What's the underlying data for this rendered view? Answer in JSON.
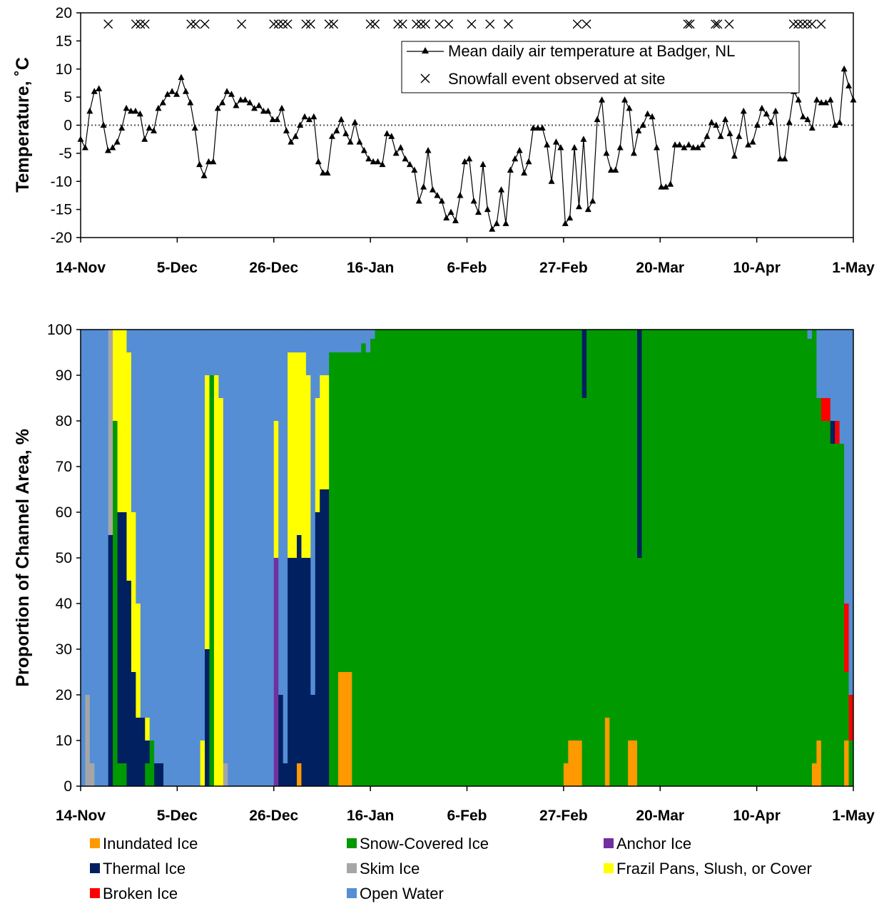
{
  "chart_data": [
    {
      "type": "line",
      "ylabel": "Temperature, ˚C",
      "xlabel": "",
      "ylim": [
        -20,
        20
      ],
      "yticks": [
        -20,
        -15,
        -10,
        -5,
        0,
        5,
        10,
        15,
        20
      ],
      "xticks": [
        "14-Nov",
        "5-Dec",
        "26-Dec",
        "16-Jan",
        "6-Feb",
        "27-Feb",
        "20-Mar",
        "10-Apr",
        "1-May"
      ],
      "grid": false,
      "reference_line": {
        "y": 0,
        "style": "dotted"
      },
      "legend_position": "top-right",
      "series": [
        {
          "name": "Mean daily air temperature at Badger, NL",
          "marker": "triangle",
          "values": [
            -2.5,
            -4,
            2.5,
            6,
            6.5,
            0,
            -4.5,
            -4,
            -3,
            -0.5,
            3,
            2.5,
            2.5,
            2,
            -2.5,
            -0.5,
            -1,
            3,
            4,
            5.5,
            6,
            5.5,
            8.5,
            6,
            4,
            -0.5,
            -7,
            -9,
            -6.5,
            -6.5,
            3,
            4,
            6,
            5.5,
            3.5,
            4.5,
            4.5,
            4,
            3,
            3.5,
            2.5,
            2.5,
            1,
            1,
            3,
            -1,
            -3,
            -2,
            0,
            1.5,
            1,
            1.5,
            -6.5,
            -8.5,
            -8.5,
            -2,
            -1,
            1,
            -1.5,
            -3,
            0.5,
            -3,
            -4.5,
            -6,
            -6.5,
            -6.5,
            -7,
            -1.5,
            -2,
            -5,
            -4,
            -6,
            -7,
            -8,
            -13.5,
            -11,
            -4.5,
            -11.5,
            -12.5,
            -13.5,
            -16.5,
            -15.5,
            -17,
            -12.5,
            -6.5,
            -6,
            -13.5,
            -15.5,
            -7,
            -15,
            -18.5,
            -17.5,
            -11.5,
            -17.5,
            -8,
            -6,
            -4.5,
            -8.5,
            -6.5,
            -0.5,
            -0.5,
            -0.5,
            -3.5,
            -10,
            -3,
            -4,
            -17.5,
            -16.5,
            -4,
            -14.5,
            -2.5,
            -15,
            -13.5,
            1,
            4.5,
            -5,
            -8,
            -8,
            -4,
            4.5,
            3,
            -5,
            -1,
            0,
            2,
            1.5,
            -4,
            -11,
            -11,
            -10.5,
            -3.5,
            -3.5,
            -4,
            -3.5,
            -4,
            -4,
            -3.5,
            -2,
            0.5,
            0,
            -2,
            1,
            -1.5,
            -5.5,
            -2,
            2.5,
            -3.5,
            -3,
            0,
            3,
            2,
            0.5,
            2.5,
            -6,
            -6,
            0.5,
            6,
            4.5,
            1.5,
            1,
            -0.5,
            4.5,
            4,
            4,
            4.5,
            0,
            0.5,
            10,
            7,
            4.5
          ]
        },
        {
          "name": "Snowfall event observed at site",
          "marker": "x",
          "y_level": 18,
          "x_day_offsets": [
            6,
            12,
            13,
            14,
            24,
            25,
            27,
            35,
            42,
            43,
            44,
            45,
            49,
            50,
            54,
            55,
            63,
            64,
            69,
            70,
            73,
            74,
            75,
            78,
            80,
            85,
            89,
            93,
            108,
            110,
            132,
            132.5,
            138,
            138.5,
            141,
            155,
            156,
            157,
            158,
            159,
            161
          ]
        }
      ]
    },
    {
      "type": "bar",
      "stacked": true,
      "ylabel": "Proportion of Channel Area, %",
      "xlabel": "",
      "ylim": [
        0,
        100
      ],
      "yticks": [
        0,
        10,
        20,
        30,
        40,
        50,
        60,
        70,
        80,
        90,
        100
      ],
      "xticks": [
        "14-Nov",
        "5-Dec",
        "26-Dec",
        "16-Jan",
        "6-Feb",
        "27-Feb",
        "20-Mar",
        "10-Apr",
        "1-May"
      ],
      "legend_position": "bottom",
      "x_unit": "days since 14-Nov",
      "series_order": [
        "Inundated Ice",
        "Snow-Covered Ice",
        "Anchor Ice",
        "Thermal Ice",
        "Skim Ice",
        "Frazil Pans, Slush, or Cover",
        "Broken Ice",
        "Open Water"
      ],
      "series": [
        {
          "name": "Inundated Ice",
          "color": "#FF9900"
        },
        {
          "name": "Snow-Covered Ice",
          "color": "#009900"
        },
        {
          "name": "Anchor Ice",
          "color": "#7030A0"
        },
        {
          "name": "Thermal Ice",
          "color": "#002060"
        },
        {
          "name": "Skim Ice",
          "color": "#A6A6A6"
        },
        {
          "name": "Frazil Pans, Slush, or Cover",
          "color": "#FFFF00"
        },
        {
          "name": "Broken Ice",
          "color": "#FF0000"
        },
        {
          "name": "Open Water",
          "color": "#558ED5"
        }
      ],
      "periods": [
        {
          "from": 0,
          "to": 1,
          "values": [
            0,
            0,
            0,
            0,
            0,
            0,
            0,
            100
          ]
        },
        {
          "from": 1,
          "to": 2,
          "values": [
            0,
            0,
            0,
            0,
            20,
            0,
            0,
            80
          ]
        },
        {
          "from": 2,
          "to": 3,
          "values": [
            0,
            0,
            0,
            0,
            5,
            0,
            0,
            95
          ]
        },
        {
          "from": 3,
          "to": 6,
          "values": [
            0,
            0,
            0,
            0,
            0,
            0,
            0,
            100
          ]
        },
        {
          "from": 6,
          "to": 7,
          "values": [
            0,
            0,
            0,
            55,
            45,
            0,
            0,
            0
          ]
        },
        {
          "from": 7,
          "to": 8,
          "values": [
            0,
            80,
            0,
            0,
            0,
            20,
            0,
            0
          ]
        },
        {
          "from": 8,
          "to": 9,
          "values": [
            0,
            5,
            0,
            55,
            0,
            40,
            0,
            0
          ]
        },
        {
          "from": 9,
          "to": 10,
          "values": [
            0,
            5,
            0,
            55,
            0,
            40,
            0,
            0
          ]
        },
        {
          "from": 10,
          "to": 11,
          "values": [
            0,
            0,
            0,
            45,
            0,
            50,
            0,
            5
          ]
        },
        {
          "from": 11,
          "to": 12,
          "values": [
            0,
            0,
            0,
            25,
            0,
            35,
            0,
            40
          ]
        },
        {
          "from": 12,
          "to": 13,
          "values": [
            0,
            0,
            0,
            15,
            0,
            25,
            0,
            60
          ]
        },
        {
          "from": 13,
          "to": 14,
          "values": [
            0,
            0,
            0,
            15,
            0,
            0,
            0,
            85
          ]
        },
        {
          "from": 14,
          "to": 15,
          "values": [
            0,
            5,
            0,
            5,
            0,
            5,
            0,
            85
          ]
        },
        {
          "from": 15,
          "to": 16,
          "values": [
            0,
            10,
            0,
            0,
            0,
            0,
            0,
            90
          ]
        },
        {
          "from": 16,
          "to": 18,
          "values": [
            0,
            0,
            0,
            5,
            0,
            0,
            0,
            95
          ]
        },
        {
          "from": 18,
          "to": 26,
          "values": [
            0,
            0,
            0,
            0,
            0,
            0,
            0,
            100
          ]
        },
        {
          "from": 26,
          "to": 27,
          "values": [
            0,
            0,
            0,
            0,
            0,
            10,
            0,
            90
          ]
        },
        {
          "from": 27,
          "to": 28,
          "values": [
            0,
            0,
            0,
            30,
            0,
            60,
            0,
            10
          ]
        },
        {
          "from": 28,
          "to": 29,
          "values": [
            0,
            90,
            0,
            0,
            0,
            0,
            0,
            10
          ]
        },
        {
          "from": 29,
          "to": 30,
          "values": [
            0,
            0,
            0,
            0,
            0,
            90,
            0,
            10
          ]
        },
        {
          "from": 30,
          "to": 31,
          "values": [
            0,
            0,
            0,
            0,
            0,
            85,
            0,
            15
          ]
        },
        {
          "from": 31,
          "to": 32,
          "values": [
            0,
            0,
            0,
            0,
            5,
            0,
            0,
            95
          ]
        },
        {
          "from": 32,
          "to": 42,
          "values": [
            0,
            0,
            0,
            0,
            0,
            0,
            0,
            100
          ]
        },
        {
          "from": 42,
          "to": 43,
          "values": [
            0,
            0,
            50,
            0,
            0,
            30,
            0,
            20
          ]
        },
        {
          "from": 43,
          "to": 44,
          "values": [
            0,
            0,
            0,
            20,
            0,
            0,
            0,
            80
          ]
        },
        {
          "from": 44,
          "to": 45,
          "values": [
            0,
            0,
            0,
            5,
            0,
            0,
            0,
            95
          ]
        },
        {
          "from": 45,
          "to": 47,
          "values": [
            0,
            0,
            0,
            50,
            0,
            45,
            0,
            5
          ]
        },
        {
          "from": 47,
          "to": 48,
          "values": [
            5,
            0,
            0,
            50,
            0,
            40,
            0,
            5
          ]
        },
        {
          "from": 48,
          "to": 49,
          "values": [
            0,
            0,
            0,
            50,
            0,
            45,
            0,
            5
          ]
        },
        {
          "from": 49,
          "to": 50,
          "values": [
            0,
            0,
            0,
            50,
            0,
            40,
            0,
            10
          ]
        },
        {
          "from": 50,
          "to": 51,
          "values": [
            0,
            0,
            0,
            20,
            0,
            0,
            0,
            80
          ]
        },
        {
          "from": 51,
          "to": 52,
          "values": [
            0,
            0,
            0,
            60,
            0,
            25,
            0,
            15
          ]
        },
        {
          "from": 52,
          "to": 54,
          "values": [
            0,
            0,
            0,
            65,
            0,
            25,
            0,
            10
          ]
        },
        {
          "from": 54,
          "to": 56,
          "values": [
            0,
            95,
            0,
            0,
            0,
            0,
            0,
            5
          ]
        },
        {
          "from": 56,
          "to": 59,
          "values": [
            25,
            70,
            0,
            0,
            0,
            0,
            0,
            5
          ]
        },
        {
          "from": 59,
          "to": 61,
          "values": [
            0,
            95,
            0,
            0,
            0,
            0,
            0,
            5
          ]
        },
        {
          "from": 61,
          "to": 62,
          "values": [
            0,
            97,
            0,
            0,
            0,
            0,
            0,
            3
          ]
        },
        {
          "from": 62,
          "to": 63,
          "values": [
            0,
            95,
            0,
            0,
            0,
            0,
            0,
            5
          ]
        },
        {
          "from": 63,
          "to": 64,
          "values": [
            0,
            98,
            0,
            0,
            0,
            0,
            0,
            2
          ]
        },
        {
          "from": 64,
          "to": 105,
          "values": [
            0,
            100,
            0,
            0,
            0,
            0,
            0,
            0
          ]
        },
        {
          "from": 105,
          "to": 106,
          "values": [
            5,
            95,
            0,
            0,
            0,
            0,
            0,
            0
          ]
        },
        {
          "from": 106,
          "to": 109,
          "values": [
            10,
            90,
            0,
            0,
            0,
            0,
            0,
            0
          ]
        },
        {
          "from": 109,
          "to": 110,
          "values": [
            0,
            85,
            0,
            15,
            0,
            0,
            0,
            0
          ]
        },
        {
          "from": 110,
          "to": 114,
          "values": [
            0,
            100,
            0,
            0,
            0,
            0,
            0,
            0
          ]
        },
        {
          "from": 114,
          "to": 115,
          "values": [
            15,
            85,
            0,
            0,
            0,
            0,
            0,
            0
          ]
        },
        {
          "from": 115,
          "to": 119,
          "values": [
            0,
            100,
            0,
            0,
            0,
            0,
            0,
            0
          ]
        },
        {
          "from": 119,
          "to": 121,
          "values": [
            10,
            90,
            0,
            0,
            0,
            0,
            0,
            0
          ]
        },
        {
          "from": 121,
          "to": 122,
          "values": [
            0,
            50,
            0,
            50,
            0,
            0,
            0,
            0
          ]
        },
        {
          "from": 122,
          "to": 158,
          "values": [
            0,
            100,
            0,
            0,
            0,
            0,
            0,
            0
          ]
        },
        {
          "from": 158,
          "to": 159,
          "values": [
            0,
            98,
            0,
            0,
            0,
            0,
            0,
            2
          ]
        },
        {
          "from": 159,
          "to": 160,
          "values": [
            5,
            95,
            0,
            0,
            0,
            0,
            0,
            0
          ]
        },
        {
          "from": 160,
          "to": 161,
          "values": [
            10,
            75,
            0,
            0,
            0,
            0,
            0,
            15
          ]
        },
        {
          "from": 161,
          "to": 163,
          "values": [
            0,
            80,
            0,
            0,
            0,
            0,
            5,
            15
          ]
        },
        {
          "from": 163,
          "to": 164,
          "values": [
            0,
            75,
            0,
            5,
            0,
            0,
            0,
            20
          ]
        },
        {
          "from": 164,
          "to": 165,
          "values": [
            0,
            75,
            0,
            0,
            0,
            0,
            5,
            20
          ]
        },
        {
          "from": 165,
          "to": 166,
          "values": [
            0,
            75,
            0,
            0,
            0,
            0,
            0,
            25
          ]
        },
        {
          "from": 166,
          "to": 167,
          "values": [
            10,
            15,
            0,
            0,
            0,
            0,
            15,
            60
          ]
        },
        {
          "from": 167,
          "to": 168,
          "values": [
            0,
            10,
            0,
            0,
            0,
            0,
            10,
            80
          ]
        },
        {
          "from": 168,
          "to": 169,
          "values": [
            5,
            5,
            0,
            0,
            0,
            0,
            0,
            90
          ]
        },
        {
          "from": 169,
          "to": 170,
          "values": [
            5,
            0,
            0,
            0,
            0,
            0,
            0,
            95
          ]
        },
        {
          "from": 170,
          "to": 171,
          "values": [
            5,
            0,
            0,
            15,
            0,
            20,
            0,
            60
          ]
        },
        {
          "from": 171,
          "to": 172,
          "values": [
            5,
            0,
            0,
            0,
            0,
            0,
            0,
            95
          ]
        },
        {
          "from": 172,
          "to": 168.5,
          "values": [
            0,
            0,
            0,
            0,
            0,
            0,
            0,
            100
          ]
        }
      ]
    }
  ],
  "colors": {
    "axis": "#000000",
    "temp_line": "#000000"
  }
}
